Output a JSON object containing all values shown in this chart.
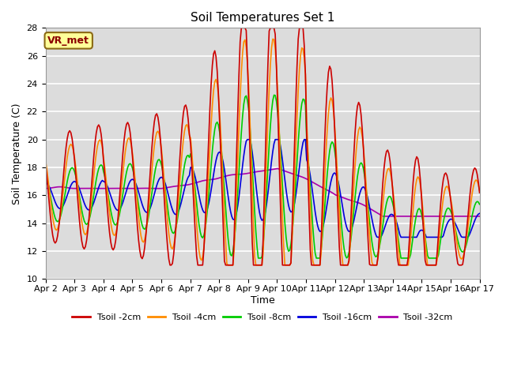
{
  "title": "Soil Temperatures Set 1",
  "xlabel": "Time",
  "ylabel": "Soil Temperature (C)",
  "xlim_days": 15,
  "ylim": [
    10,
    28
  ],
  "yticks": [
    10,
    12,
    14,
    16,
    18,
    20,
    22,
    24,
    26,
    28
  ],
  "xtick_labels": [
    "Apr 2",
    "Apr 3",
    "Apr 4",
    "Apr 5",
    "Apr 6",
    "Apr 7",
    "Apr 8",
    "Apr 9",
    "Apr 10",
    "Apr 11",
    "Apr 12",
    "Apr 13",
    "Apr 14",
    "Apr 15",
    "Apr 16",
    "Apr 17"
  ],
  "annotation_text": "VR_met",
  "annotation_color": "#8B0000",
  "annotation_bg": "#FFFF99",
  "annotation_border": "#8B6914",
  "background_color": "#DCDCDC",
  "grid_color": "#FFFFFF",
  "series_colors": {
    "Tsoil -2cm": "#CC0000",
    "Tsoil -4cm": "#FF8C00",
    "Tsoil -8cm": "#00CC00",
    "Tsoil -16cm": "#0000DD",
    "Tsoil -32cm": "#AA00AA"
  },
  "lw": 1.2
}
